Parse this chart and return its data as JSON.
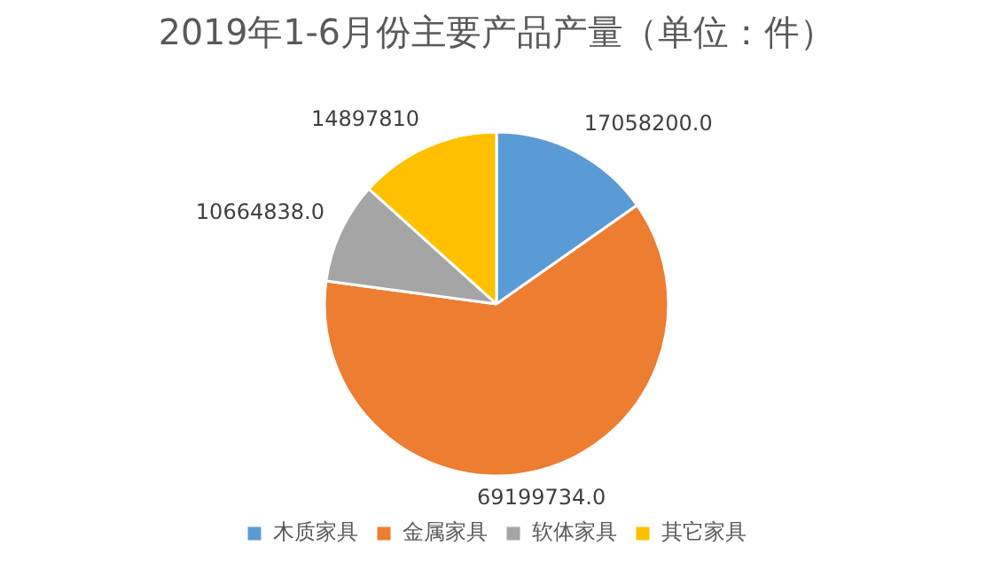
{
  "chart_data": {
    "type": "pie",
    "title": "2019年1-6月份主要产品产量（单位：件）",
    "categories": [
      "木质家具",
      "金属家具",
      "软体家具",
      "其它家具"
    ],
    "values": [
      17058200,
      69199734,
      10664838,
      14897810
    ],
    "value_labels": [
      "17058200.0",
      "69199734.0",
      "10664838.0",
      "14897810"
    ],
    "colors": [
      "#5b9bd5",
      "#ed7d31",
      "#a5a5a5",
      "#ffc000"
    ],
    "legend": "bottom"
  }
}
